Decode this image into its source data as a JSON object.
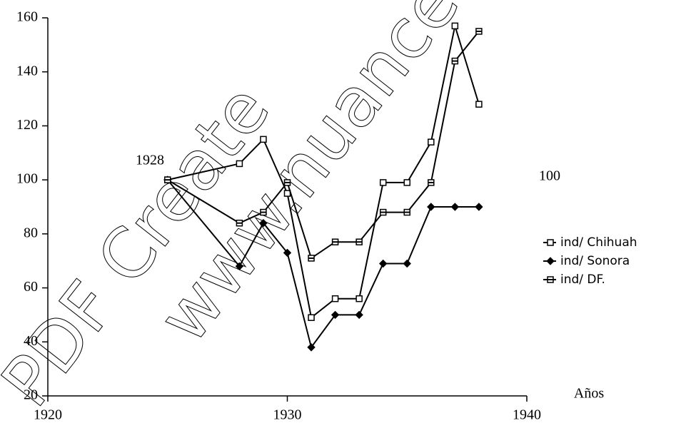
{
  "chart_data": {
    "type": "line",
    "x": [
      1925,
      1928,
      1929,
      1930,
      1931,
      1932,
      1933,
      1934,
      1935,
      1936,
      1937,
      1938
    ],
    "series": [
      {
        "name": "ind/ Chihuah",
        "color": "#000000",
        "marker": "open-square",
        "values": [
          100,
          106,
          115,
          95,
          49,
          56,
          56,
          99,
          99,
          114,
          157,
          128
        ]
      },
      {
        "name": "ind/ Sonora",
        "color": "#000000",
        "marker": "diamond",
        "values": [
          100,
          68,
          84,
          73,
          38,
          50,
          50,
          69,
          69,
          90,
          90,
          90
        ]
      },
      {
        "name": "ind/ DF.",
        "color": "#000000",
        "marker": "bar-square",
        "values": [
          100,
          84,
          88,
          99,
          71,
          77,
          77,
          88,
          88,
          99,
          144,
          155
        ]
      }
    ],
    "xlim": [
      1920,
      1940
    ],
    "xticks": [
      1920,
      1930,
      1940
    ],
    "ylim": [
      20,
      160
    ],
    "yticks": [
      20,
      40,
      60,
      80,
      100,
      120,
      140,
      160
    ],
    "x_label": "Años",
    "annotations": [
      "1928",
      "100"
    ],
    "watermark": [
      "PDF Create",
      "www.nuance.co"
    ],
    "legend": "right"
  }
}
